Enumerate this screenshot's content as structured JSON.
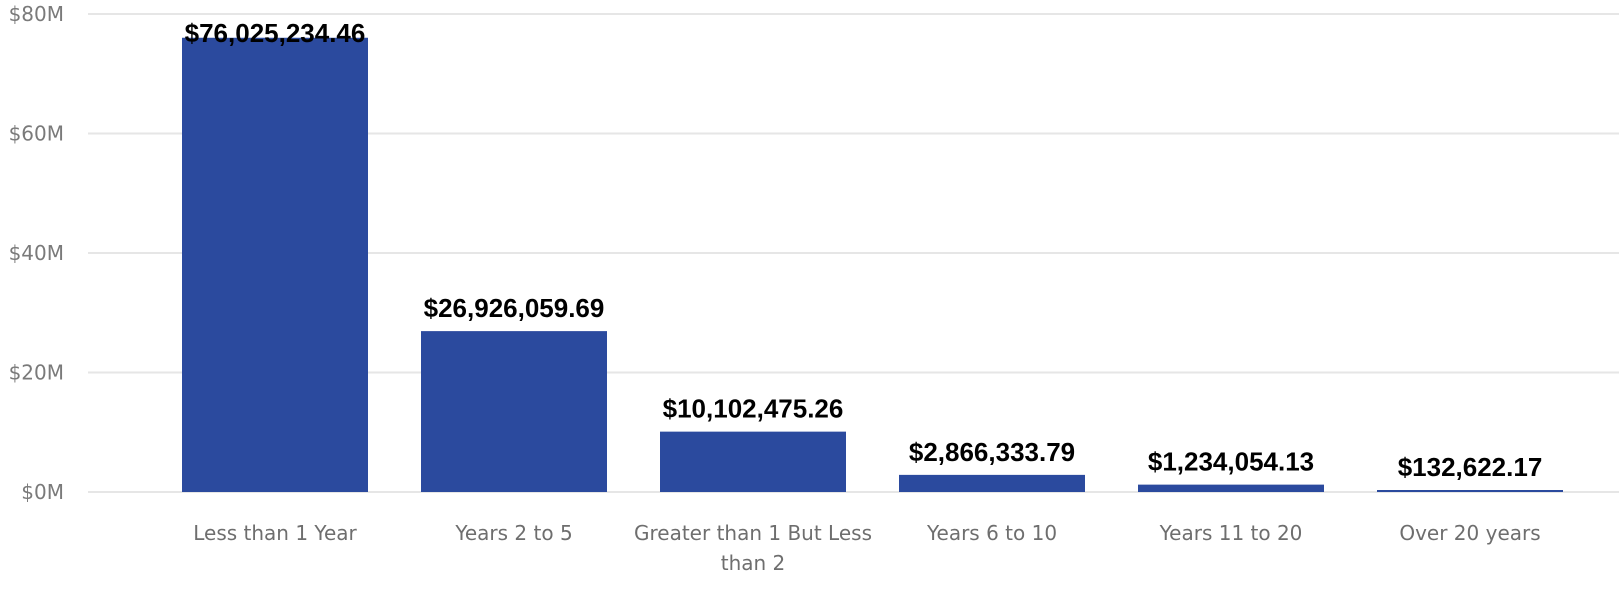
{
  "chart_data": {
    "type": "bar",
    "categories": [
      "Less than 1 Year",
      "Years 2 to 5",
      "Greater than 1 But Less than 2",
      "Years 6 to 10",
      "Years 11 to 20",
      "Over 20 years"
    ],
    "values": [
      76025234.46,
      26926059.69,
      10102475.26,
      2866333.79,
      1234054.13,
      132622.17
    ],
    "data_labels": [
      "$76,025,234.46",
      "$26,926,059.69",
      "$10,102,475.26",
      "$2,866,333.79",
      "$1,234,054.13",
      "$132,622.17"
    ],
    "ylim": [
      0,
      80000000
    ],
    "yticks": [
      0,
      20000000,
      40000000,
      60000000,
      80000000
    ],
    "ytick_labels": [
      "$0M",
      "$20M",
      "$40M",
      "$60M",
      "$80M"
    ],
    "grid": true,
    "bar_color": "#2b4a9e",
    "title": "",
    "xlabel": "",
    "ylabel": ""
  }
}
